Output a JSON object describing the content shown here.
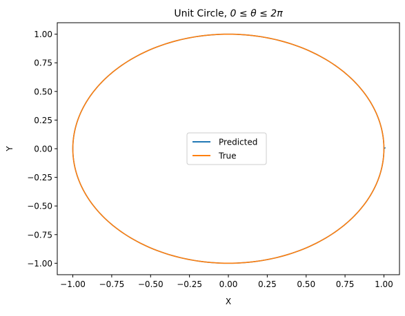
{
  "chart_data": {
    "type": "line",
    "title_prefix": "Unit Circle, ",
    "title_math": "0 ≤ θ ≤ 2π",
    "title": "Unit Circle, 0 ≤ θ ≤ 2π",
    "xlabel": "X",
    "ylabel": "Y",
    "xlim": [
      -1.1,
      1.1
    ],
    "ylim": [
      -1.1,
      1.1
    ],
    "x_ticks": [
      -1.0,
      -0.75,
      -0.5,
      -0.25,
      0.0,
      0.25,
      0.5,
      0.75,
      1.0
    ],
    "x_tick_labels": [
      "−1.00",
      "−0.75",
      "−0.50",
      "−0.25",
      "0.00",
      "0.25",
      "0.50",
      "0.75",
      "1.00"
    ],
    "y_ticks": [
      1.0,
      0.75,
      0.5,
      0.25,
      0.0,
      -0.25,
      -0.5,
      -0.75,
      -1.0
    ],
    "y_tick_labels": [
      "1.00",
      "0.75",
      "0.50",
      "0.25",
      "0.00",
      "−0.25",
      "−0.50",
      "−0.75",
      "−1.00"
    ],
    "grid": false,
    "legend_position": "center",
    "series": [
      {
        "name": "Predicted",
        "color": "#1f77b4",
        "curve": "unit circle, slight endpoint deviation near (1.0, 0.0)",
        "points": [
          [
            1.01,
            0.01
          ],
          [
            1.0,
            0.0
          ],
          [
            0.866,
            0.5
          ],
          [
            0.5,
            0.866
          ],
          [
            0.0,
            1.0
          ],
          [
            -0.5,
            0.866
          ],
          [
            -0.866,
            0.5
          ],
          [
            -1.0,
            0.0
          ],
          [
            -0.866,
            -0.5
          ],
          [
            -0.5,
            -0.866
          ],
          [
            0.0,
            -1.0
          ],
          [
            0.5,
            -0.866
          ],
          [
            0.866,
            -0.5
          ],
          [
            1.0,
            0.0
          ]
        ]
      },
      {
        "name": "True",
        "color": "#ff7f0e",
        "curve": "unit circle x = cos(θ), y = sin(θ)",
        "points": [
          [
            1.0,
            0.0
          ],
          [
            0.866,
            0.5
          ],
          [
            0.5,
            0.866
          ],
          [
            0.0,
            1.0
          ],
          [
            -0.5,
            0.866
          ],
          [
            -0.866,
            0.5
          ],
          [
            -1.0,
            0.0
          ],
          [
            -0.866,
            -0.5
          ],
          [
            -0.5,
            -0.866
          ],
          [
            0.0,
            -1.0
          ],
          [
            0.5,
            -0.866
          ],
          [
            0.866,
            -0.5
          ],
          [
            1.0,
            0.0
          ]
        ]
      }
    ]
  }
}
